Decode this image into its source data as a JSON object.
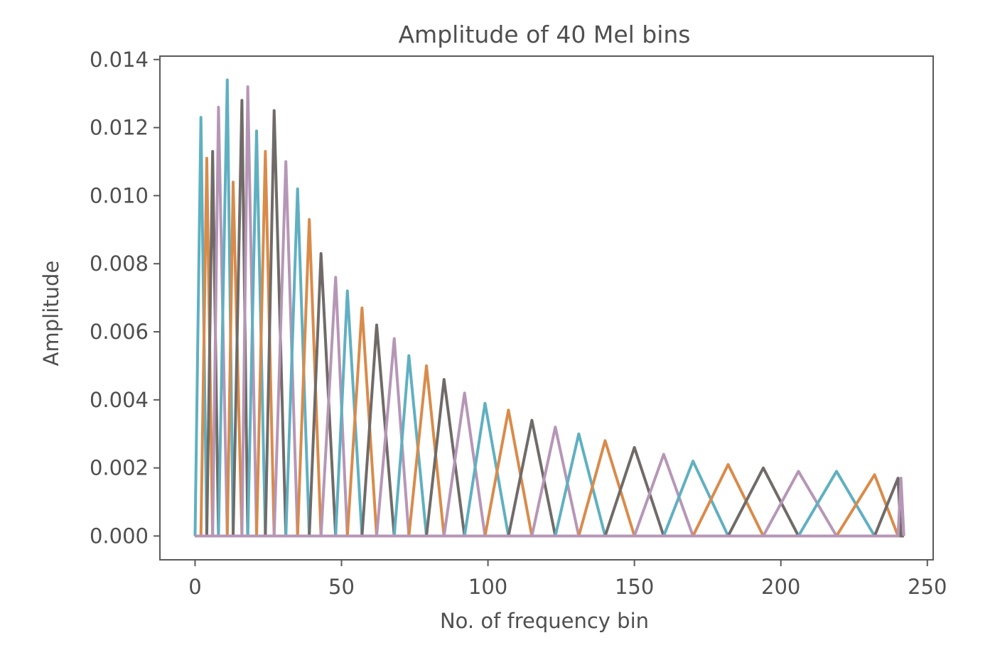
{
  "chart_data": {
    "type": "line",
    "title": "Amplitude of 40 Mel bins",
    "xlabel": "No. of frequency bin",
    "ylabel": "Amplitude",
    "xlim": [
      -12,
      252
    ],
    "ylim": [
      -0.0007,
      0.0141
    ],
    "xticks": [
      0,
      50,
      100,
      150,
      200,
      250
    ],
    "xtick_labels": [
      "0",
      "50",
      "100",
      "150",
      "200",
      "250"
    ],
    "yticks": [
      0.0,
      0.002,
      0.004,
      0.006,
      0.008,
      0.01,
      0.012,
      0.014
    ],
    "ytick_labels": [
      "0.000",
      "0.002",
      "0.004",
      "0.006",
      "0.008",
      "0.010",
      "0.012",
      "0.014"
    ],
    "grid": false,
    "legend": false,
    "colors": [
      "#5fb0c1",
      "#d98b4a",
      "#706b68",
      "#b696b6"
    ],
    "filter_points": [
      0,
      2,
      4,
      6,
      8,
      11,
      13,
      16,
      18,
      21,
      24,
      27,
      31,
      35,
      39,
      43,
      48,
      52,
      57,
      62,
      68,
      73,
      79,
      85,
      92,
      99,
      107,
      115,
      123,
      131,
      140,
      150,
      160,
      170,
      182,
      194,
      206,
      219,
      232,
      240,
      241,
      242
    ],
    "peak_values": [
      0.0123,
      0.0111,
      0.0113,
      0.0126,
      0.0134,
      0.0104,
      0.0128,
      0.0132,
      0.0119,
      0.0113,
      0.0125,
      0.011,
      0.0102,
      0.0093,
      0.0083,
      0.0076,
      0.0072,
      0.0067,
      0.0062,
      0.0058,
      0.0053,
      0.005,
      0.0046,
      0.0042,
      0.0039,
      0.0037,
      0.0034,
      0.0032,
      0.003,
      0.0028,
      0.0026,
      0.0024,
      0.0022,
      0.0021,
      0.002,
      0.0019,
      0.0019,
      0.0018,
      0.0017,
      0.0017
    ]
  }
}
